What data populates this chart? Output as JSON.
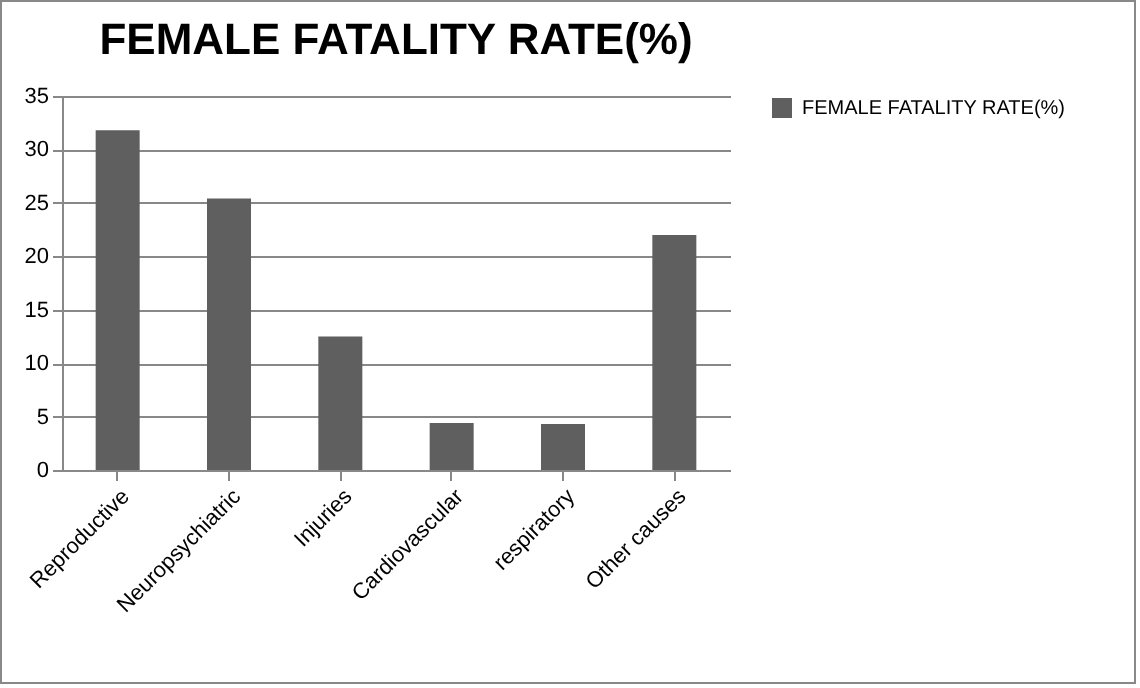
{
  "chart_data": {
    "type": "bar",
    "title": "FEMALE FATALITY RATE(%)",
    "categories": [
      "Reproductive",
      "Neuropsychiatric",
      "Injuries",
      "Cardiovascular",
      "respiratory",
      "Other causes"
    ],
    "series": [
      {
        "name": "FEMALE FATALITY RATE(%)",
        "color": "#5f5f5f",
        "values": [
          31.8,
          25.4,
          12.5,
          4.4,
          4.3,
          22
        ]
      }
    ],
    "ylim": [
      0,
      35
    ],
    "yticks": [
      0,
      5,
      10,
      15,
      20,
      25,
      30,
      35
    ],
    "grid": "y",
    "legend": "right"
  }
}
